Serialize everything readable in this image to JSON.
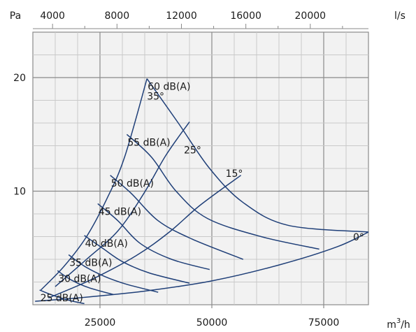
{
  "chart_data": {
    "type": "line",
    "title": "",
    "x_bottom": {
      "label": "m³/h",
      "unit_base": "m",
      "unit_sup": "3",
      "unit_tail": "/h",
      "range": [
        10000,
        85000
      ],
      "ticks": [
        25000,
        50000,
        75000
      ],
      "tick_labels": [
        "25000",
        "50000",
        "75000"
      ]
    },
    "x_top": {
      "label": "l/s",
      "ticks": [
        4000,
        8000,
        12000,
        16000,
        20000
      ],
      "tick_labels": [
        "4000",
        "8000",
        "12000",
        "16000",
        "20000"
      ]
    },
    "y": {
      "label": "Pa",
      "range": [
        0,
        24
      ],
      "ticks": [
        10,
        20
      ],
      "tick_labels": [
        "10",
        "20"
      ]
    },
    "grid": true,
    "sound_curves": [
      {
        "label": "60 dB(A)",
        "points": [
          [
            35500,
            19.9
          ],
          [
            42500,
            16.0
          ],
          [
            49500,
            12.0
          ],
          [
            57000,
            9.0
          ],
          [
            67000,
            7.0
          ],
          [
            85000,
            6.4
          ]
        ]
      },
      {
        "label": "55 dB(A)",
        "points": [
          [
            31000,
            15.0
          ],
          [
            36500,
            13.0
          ],
          [
            42000,
            10.0
          ],
          [
            49000,
            7.6
          ],
          [
            61000,
            6.0
          ],
          [
            74000,
            4.9
          ]
        ]
      },
      {
        "label": "50 dB(A)",
        "points": [
          [
            27300,
            11.4
          ],
          [
            32000,
            9.8
          ],
          [
            38000,
            7.4
          ],
          [
            45500,
            5.8
          ],
          [
            57000,
            4.0
          ]
        ]
      },
      {
        "label": "45 dB(A)",
        "points": [
          [
            24500,
            8.9
          ],
          [
            29000,
            7.4
          ],
          [
            34000,
            5.4
          ],
          [
            41000,
            4.0
          ],
          [
            49500,
            3.1
          ]
        ]
      },
      {
        "label": "40 dB(A)",
        "points": [
          [
            21500,
            6.1
          ],
          [
            25500,
            5.0
          ],
          [
            30000,
            3.8
          ],
          [
            36000,
            2.8
          ],
          [
            45000,
            1.9
          ]
        ]
      },
      {
        "label": "35 dB(A)",
        "points": [
          [
            18000,
            4.4
          ],
          [
            21500,
            3.4
          ],
          [
            26000,
            2.5
          ],
          [
            31000,
            1.8
          ],
          [
            38000,
            1.1
          ]
        ]
      },
      {
        "label": "30 dB(A)",
        "points": [
          [
            15500,
            3.0
          ],
          [
            18500,
            2.2
          ],
          [
            22500,
            1.5
          ],
          [
            28000,
            0.9
          ]
        ]
      },
      {
        "label": "25 dB(A)",
        "points": [
          [
            11500,
            1.3
          ],
          [
            14000,
            0.9
          ],
          [
            18000,
            0.4
          ],
          [
            21500,
            0.1
          ]
        ]
      }
    ],
    "angle_curves": [
      {
        "label": "35°",
        "points": [
          [
            11800,
            1.3
          ],
          [
            17000,
            3.4
          ],
          [
            22000,
            6.0
          ],
          [
            26500,
            9.3
          ],
          [
            30500,
            13.0
          ],
          [
            35500,
            19.9
          ]
        ]
      },
      {
        "label": "25°",
        "points": [
          [
            15000,
            1.6
          ],
          [
            22000,
            4.0
          ],
          [
            29000,
            6.5
          ],
          [
            34800,
            9.8
          ],
          [
            39800,
            13.2
          ],
          [
            45000,
            16.1
          ]
        ]
      },
      {
        "label": "15°",
        "points": [
          [
            13500,
            0.6
          ],
          [
            23000,
            2.2
          ],
          [
            33000,
            4.3
          ],
          [
            40500,
            6.4
          ],
          [
            47500,
            8.8
          ],
          [
            56500,
            11.4
          ]
        ]
      },
      {
        "label": "0°",
        "points": [
          [
            10500,
            0.3
          ],
          [
            20000,
            0.6
          ],
          [
            35000,
            1.2
          ],
          [
            50000,
            2.1
          ],
          [
            65000,
            3.5
          ],
          [
            78000,
            5.1
          ],
          [
            85000,
            6.4
          ]
        ]
      }
    ]
  }
}
